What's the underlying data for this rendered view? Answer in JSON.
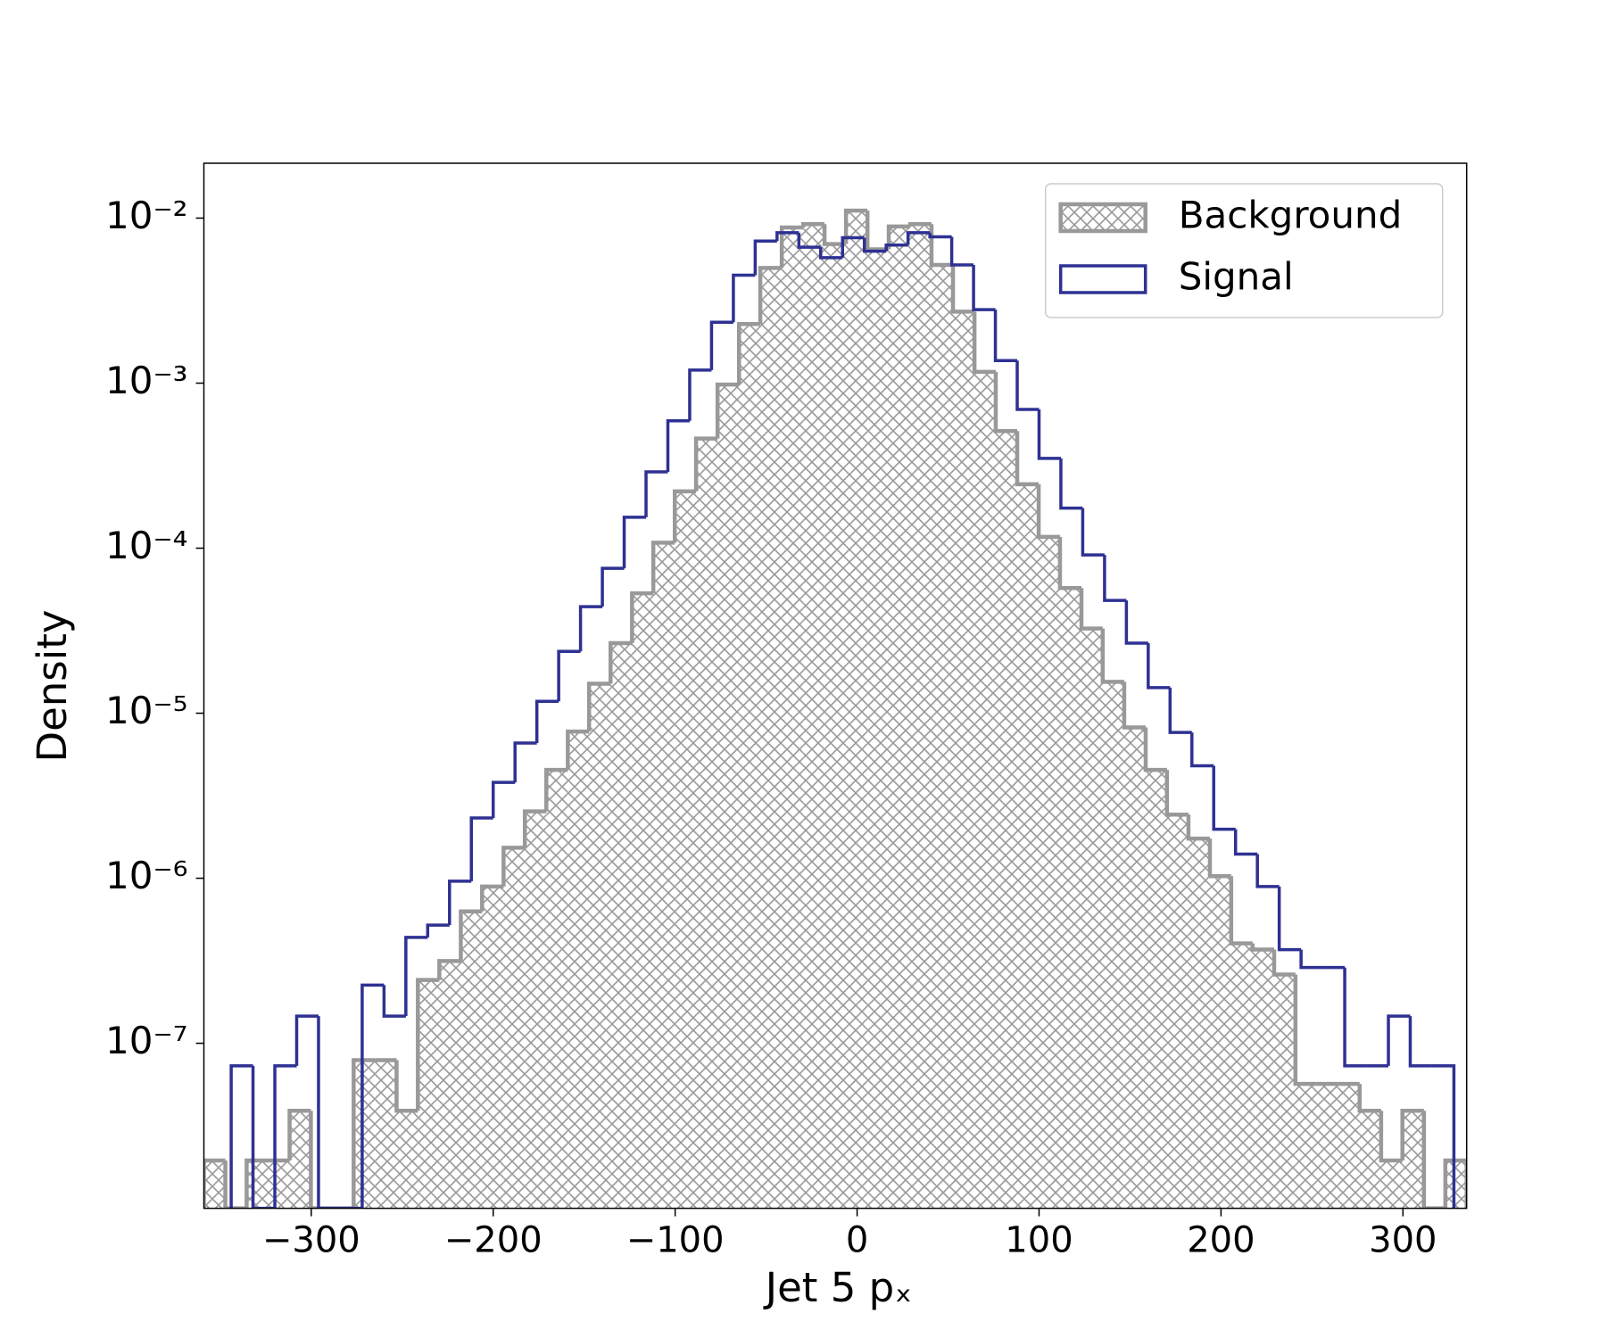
{
  "chart_data": {
    "type": "histogram",
    "xlabel": "Jet 5 pₓ",
    "ylabel": "Density",
    "xlim": [
      -359,
      335
    ],
    "ylim": [
      1e-08,
      0.0215
    ],
    "log_y": true,
    "xticks": [
      {
        "value": -300,
        "label": "−300"
      },
      {
        "value": -200,
        "label": "−200"
      },
      {
        "value": -100,
        "label": "−100"
      },
      0,
      100,
      200,
      300
    ],
    "yticks": [
      {
        "value": 1e-07,
        "label": "10⁻⁷"
      },
      {
        "value": 1e-06,
        "label": "10⁻⁶"
      },
      {
        "value": 1e-05,
        "label": "10⁻⁵"
      },
      {
        "value": 0.0001,
        "label": "10⁻⁴"
      },
      {
        "value": 0.001,
        "label": "10⁻³"
      },
      {
        "value": 0.01,
        "label": "10⁻²"
      }
    ],
    "legend": "upper right",
    "series": [
      {
        "name": "Background",
        "color": "#999999",
        "hatch": true,
        "bins": [
          -359.0,
          -347.2,
          -335.5,
          -323.7,
          -311.9,
          -300.2,
          -288.4,
          -276.7,
          -264.9,
          -253.1,
          -241.4,
          -229.6,
          -217.8,
          -206.1,
          -194.3,
          -182.6,
          -170.8,
          -159.0,
          -147.3,
          -135.5,
          -123.7,
          -112.0,
          -100.2,
          -88.5,
          -76.7,
          -64.9,
          -53.2,
          -41.4,
          -29.6,
          -17.9,
          -6.1,
          5.7,
          17.4,
          29.2,
          40.9,
          52.7,
          64.5,
          76.2,
          88.0,
          99.8,
          111.5,
          123.3,
          135.0,
          146.8,
          158.6,
          170.3,
          182.1,
          193.9,
          205.6,
          217.4,
          229.2,
          240.9,
          252.7,
          264.4,
          276.2,
          288.0,
          299.7,
          311.5,
          323.3,
          335.0
        ],
        "values": [
          1.95e-08,
          0,
          1.95e-08,
          1.95e-08,
          3.9e-08,
          0,
          0,
          7.9e-08,
          7.9e-08,
          3.9e-08,
          2.42e-07,
          3.15e-07,
          6.3e-07,
          8.9e-07,
          1.53e-06,
          2.54e-06,
          4.53e-06,
          7.74e-06,
          1.51e-05,
          2.66e-05,
          5.33e-05,
          0.000108,
          0.000221,
          0.000462,
          0.00098,
          0.00228,
          0.00499,
          0.00877,
          0.0092,
          0.00696,
          0.0111,
          0.00647,
          0.0089,
          0.0092,
          0.0052,
          0.00271,
          0.00117,
          0.000512,
          0.000244,
          0.000117,
          5.73e-05,
          3.26e-05,
          1.55e-05,
          8.2e-06,
          4.53e-06,
          2.43e-06,
          1.74e-06,
          1.03e-06,
          4.03e-07,
          3.7e-07,
          2.61e-07,
          5.67e-08,
          5.67e-08,
          5.67e-08,
          3.9e-08,
          1.95e-08,
          3.9e-08,
          0,
          1.95e-08
        ]
      },
      {
        "name": "Signal",
        "color": "#2e3192",
        "hatch": false,
        "bins": [
          -344,
          -332,
          -320,
          -308,
          -296,
          -284,
          -272,
          -260,
          -248,
          -236,
          -224,
          -212,
          -200,
          -188,
          -176,
          -164,
          -152,
          -140,
          -128,
          -116,
          -104,
          -92,
          -80,
          -68,
          -56,
          -44,
          -32,
          -20,
          -8,
          4,
          16,
          28,
          40,
          52,
          64,
          76,
          88,
          100,
          112,
          124,
          136,
          148,
          160,
          172,
          184,
          196,
          208,
          220,
          232,
          244,
          256,
          268,
          280,
          292,
          304,
          316,
          328
        ],
        "values": [
          7.3e-08,
          0,
          7.3e-08,
          1.46e-07,
          0,
          0,
          2.25e-07,
          1.46e-07,
          4.38e-07,
          5.2e-07,
          9.6e-07,
          2.32e-06,
          3.81e-06,
          6.6e-06,
          1.18e-05,
          2.37e-05,
          4.42e-05,
          7.55e-05,
          0.000154,
          0.00029,
          0.000591,
          0.0012,
          0.00234,
          0.00451,
          0.00726,
          0.00816,
          0.00666,
          0.00576,
          0.0076,
          0.0063,
          0.00686,
          0.00816,
          0.0077,
          0.0052,
          0.00279,
          0.00137,
          0.000693,
          0.00035,
          0.000175,
          9.1e-05,
          4.82e-05,
          2.66e-05,
          1.43e-05,
          7.64e-06,
          4.8e-06,
          1.98e-06,
          1.4e-06,
          8.9e-07,
          3.69e-07,
          2.88e-07,
          2.88e-07,
          7.3e-08,
          7.3e-08,
          1.46e-07,
          7.3e-08,
          7.3e-08
        ]
      }
    ]
  }
}
